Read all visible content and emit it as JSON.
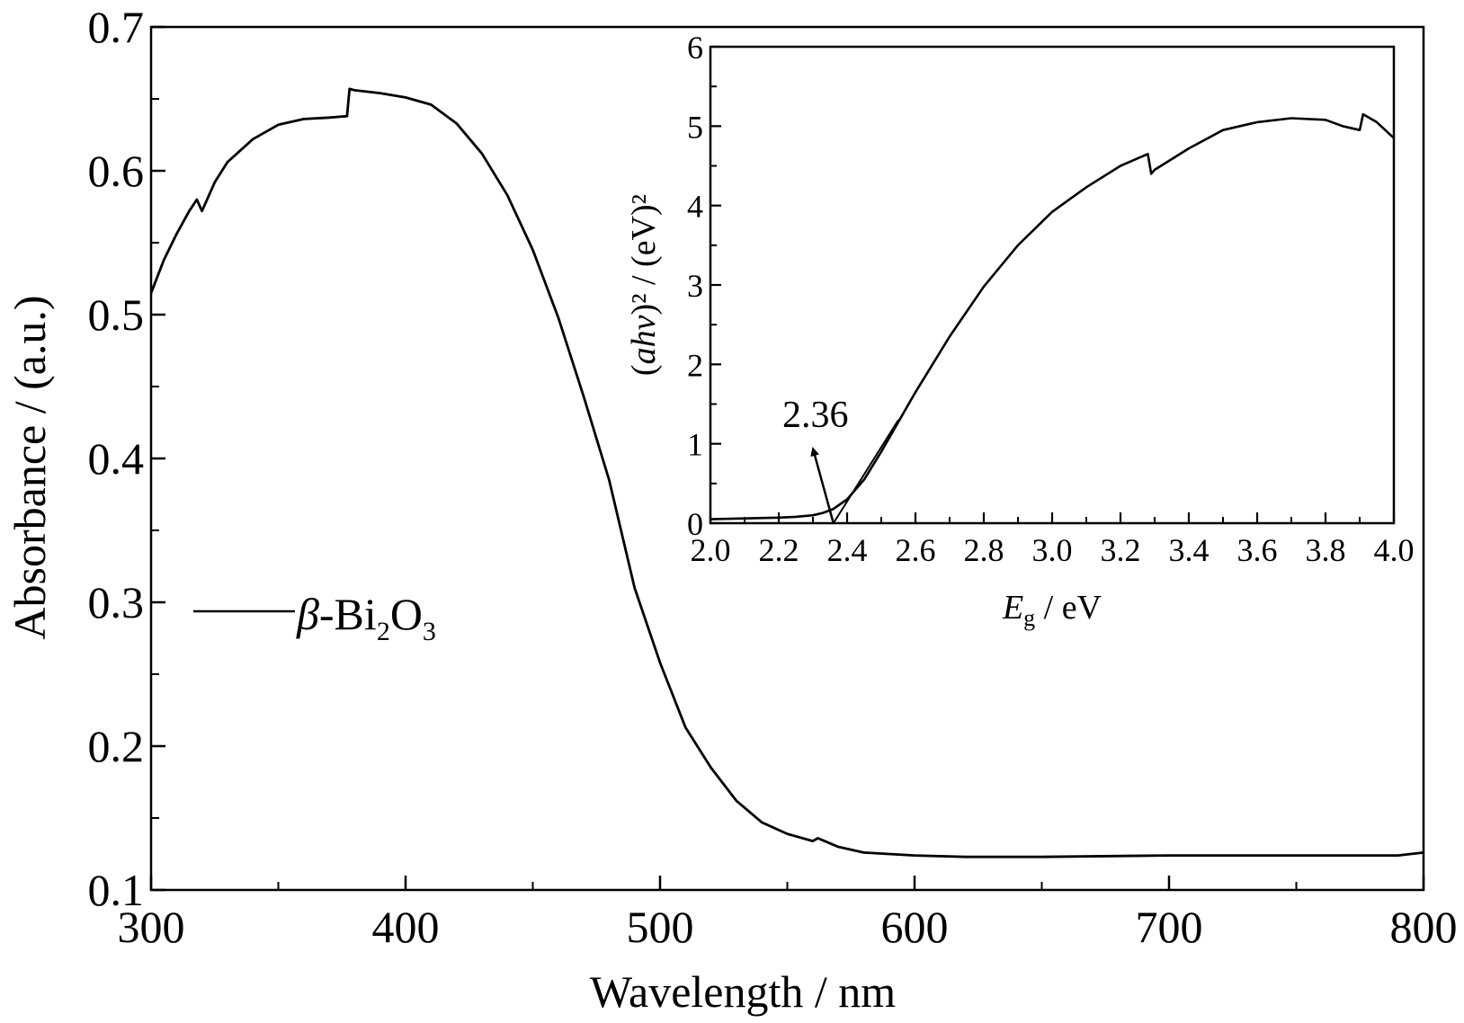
{
  "chart_data": [
    {
      "type": "line",
      "xlabel": "Wavelength / nm",
      "ylabel": "Absorbance / (a.u.)",
      "xlim": [
        300,
        800
      ],
      "ylim": [
        0.1,
        0.7
      ],
      "xticks": [
        "300",
        "400",
        "500",
        "600",
        "700",
        "800"
      ],
      "yticks": [
        "0.1",
        "0.2",
        "0.3",
        "0.4",
        "0.5",
        "0.6",
        "0.7"
      ],
      "legend": {
        "position": "middle-left",
        "entries": [
          {
            "italic": "β",
            "text": "-Bi",
            "sub1": "2",
            "text2": "O",
            "sub2": "3"
          }
        ]
      },
      "series": [
        {
          "name": "β-Bi2O3",
          "color": "#000000",
          "x": [
            300,
            305,
            310,
            315,
            318,
            320,
            325,
            330,
            340,
            350,
            360,
            370,
            377,
            378,
            380,
            390,
            400,
            410,
            420,
            430,
            440,
            450,
            460,
            470,
            480,
            490,
            500,
            510,
            520,
            530,
            540,
            550,
            560,
            562,
            570,
            580,
            600,
            620,
            650,
            700,
            750,
            790,
            800
          ],
          "y": [
            0.515,
            0.538,
            0.556,
            0.572,
            0.58,
            0.572,
            0.592,
            0.606,
            0.622,
            0.632,
            0.636,
            0.637,
            0.638,
            0.657,
            0.656,
            0.654,
            0.651,
            0.646,
            0.633,
            0.612,
            0.583,
            0.545,
            0.498,
            0.443,
            0.385,
            0.31,
            0.258,
            0.213,
            0.185,
            0.162,
            0.147,
            0.139,
            0.134,
            0.136,
            0.13,
            0.126,
            0.124,
            0.123,
            0.123,
            0.124,
            0.124,
            0.124,
            0.126
          ]
        }
      ]
    },
    {
      "type": "line",
      "position": "inset top-right",
      "xlabel_symbol": "E",
      "xlabel_sub": "g",
      "xlabel_unit": " / eV",
      "ylabel_paren_open": "(",
      "ylabel_italic": "ahv",
      "ylabel_rest": ")² / (eV)²",
      "xlim": [
        2.0,
        4.0
      ],
      "ylim": [
        0,
        6
      ],
      "xticks": [
        "2.0",
        "2.2",
        "2.4",
        "2.6",
        "2.8",
        "3.0",
        "3.2",
        "3.4",
        "3.6",
        "3.8",
        "4.0"
      ],
      "yticks": [
        "0",
        "1",
        "2",
        "3",
        "4",
        "5",
        "6"
      ],
      "annotations": [
        {
          "text": "2.36",
          "x": 2.36,
          "y": 0
        }
      ],
      "series": [
        {
          "name": "",
          "color": "#000000",
          "x": [
            2.0,
            2.1,
            2.2,
            2.25,
            2.3,
            2.33,
            2.36,
            2.4,
            2.45,
            2.5,
            2.6,
            2.7,
            2.8,
            2.9,
            3.0,
            3.1,
            3.2,
            3.28,
            3.29,
            3.3,
            3.4,
            3.5,
            3.6,
            3.7,
            3.8,
            3.85,
            3.9,
            3.91,
            3.95,
            4.0
          ],
          "y": [
            0.05,
            0.06,
            0.07,
            0.08,
            0.1,
            0.13,
            0.18,
            0.3,
            0.55,
            0.9,
            1.65,
            2.35,
            2.98,
            3.5,
            3.92,
            4.23,
            4.5,
            4.65,
            4.4,
            4.45,
            4.72,
            4.95,
            5.05,
            5.1,
            5.08,
            5.0,
            4.95,
            5.15,
            5.05,
            4.85
          ]
        },
        {
          "name": "",
          "style": "tangent",
          "color": "#000000",
          "x": [
            2.36,
            2.55
          ],
          "y": [
            0,
            1.3
          ]
        }
      ]
    }
  ]
}
